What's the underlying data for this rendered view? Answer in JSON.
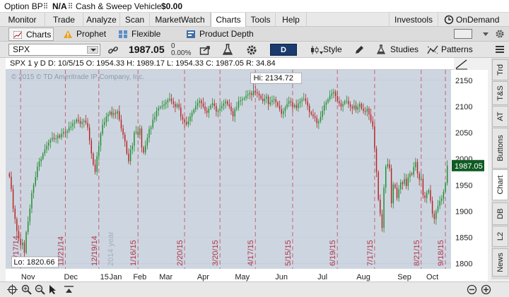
{
  "account": {
    "option_bp_label": "Option BP",
    "option_bp_value": "N/A",
    "cash_label": "Cash & Sweep Vehicle",
    "cash_value": "$0.00"
  },
  "menu": {
    "items": [
      "Monitor",
      "Trade",
      "Analyze",
      "Scan",
      "MarketWatch",
      "Charts",
      "Tools",
      "Help"
    ],
    "active": "Charts",
    "investools": "Investools",
    "ondemand": "OnDemand"
  },
  "subtabs": {
    "items": [
      "Charts",
      "Prophet",
      "Flexible Grid",
      "Product Depth"
    ],
    "active": "Charts"
  },
  "toolbar": {
    "symbol": "SPX",
    "last_price": "1987.05",
    "change": "0",
    "change_pct": "0.00%",
    "aggregation": "D",
    "style_label": "Style",
    "studies_label": "Studies",
    "patterns_label": "Patterns"
  },
  "chart_header": {
    "period": "SPX 1 y D",
    "date": "D: 10/5/15",
    "open": "O: 1954.33",
    "high": "H: 1989.17",
    "low": "L: 1954.33",
    "close": "C: 1987.05",
    "range": "R: 34.84"
  },
  "copyright": "© 2015 © TD Ameritrade IP Company, Inc.",
  "side_tabs": [
    "Trd",
    "T&S",
    "AT",
    "Buttons",
    "Chart",
    "DB",
    "L2",
    "News"
  ],
  "side_tab_active": "Chart",
  "chart_data": {
    "type": "candlestick",
    "symbol": "SPX",
    "ylim": [
      1790,
      2170
    ],
    "y_ticks": [
      1800,
      1850,
      1900,
      1950,
      2000,
      2050,
      2100,
      2150
    ],
    "x_month_labels": [
      "Nov",
      "Dec",
      "15",
      "Jan",
      "Feb",
      "Mar",
      "Apr",
      "May",
      "Jun",
      "Jul",
      "Aug",
      "Sep",
      "Oct"
    ],
    "expiration_markers": [
      "11/21/14",
      "12/19/14",
      "1/16/15",
      "2/20/15",
      "3/20/15",
      "4/17/15",
      "5/15/15",
      "6/19/15",
      "7/17/15",
      "8/21/15",
      "9/18/15"
    ],
    "first_marker_label": "10/17/14",
    "year_watermark": "2014 year",
    "high_label": "Hi: 2134.72",
    "low_label": "Lo: 1820.66",
    "last_label": "1987.05",
    "high": 2134.72,
    "low": 1820.66,
    "last": 1987.05,
    "closes": [
      1966,
      1942,
      1905,
      1885,
      1862,
      1847,
      1835,
      1840,
      1820.66,
      1860,
      1880,
      1905,
      1935,
      1950,
      1965,
      1985,
      1995,
      2000,
      2010,
      2018,
      2025,
      2031,
      2036,
      2040,
      2038,
      2039,
      2045,
      2041,
      2048,
      2051,
      2050,
      2053,
      2060,
      2062,
      2068,
      2070,
      2075,
      2072,
      2067,
      2071,
      2073,
      2069,
      2060,
      2035,
      2010,
      1989,
      1975,
      2005,
      2025,
      2048,
      2065,
      2070,
      2081,
      2085,
      2090,
      2083,
      2088,
      2086,
      2091,
      2075,
      2058,
      2046,
      2033,
      2010,
      1995,
      2018,
      2025,
      2050,
      2052,
      2046,
      2058,
      2022,
      2012,
      2025,
      2040,
      2057,
      2060,
      2075,
      2080,
      2092,
      2097,
      2099,
      2101,
      2104,
      2108,
      2112,
      2115,
      2110,
      2105,
      2099,
      2104,
      2098,
      2080,
      2075,
      2070,
      2066,
      2072,
      2081,
      2088,
      2094,
      2101,
      2107,
      2111,
      2106,
      2100,
      2092,
      2088,
      2096,
      2102,
      2106,
      2101,
      2090,
      2092,
      2096,
      2101,
      2106,
      2110,
      2104,
      2100,
      2091,
      2081,
      2095,
      2098,
      2110,
      2112,
      2114,
      2116,
      2121,
      2123,
      2126,
      2122,
      2130,
      2127,
      2125,
      2121,
      2115,
      2110,
      2115,
      2119,
      2104,
      2108,
      2112,
      2114,
      2108,
      2101,
      2095,
      2086,
      2091,
      2098,
      2105,
      2110,
      2108,
      2099,
      2103,
      2097,
      2106,
      2110,
      2114,
      2115,
      2110,
      2101,
      2089,
      2085,
      2081,
      2078,
      2068,
      2072,
      2080,
      2092,
      2103,
      2108,
      2114,
      2121,
      2125,
      2128,
      2120,
      2110,
      2106,
      2100,
      2105,
      2110,
      2111,
      2104,
      2100,
      2096,
      2102,
      2094,
      2099,
      2105,
      2096,
      2091,
      2090,
      2096,
      2085,
      2072,
      2062,
      2020,
      1975,
      1922,
      1895,
      1868,
      1945,
      1985,
      1990,
      1982,
      1915,
      1951,
      1945,
      1925,
      1942,
      1955,
      1952,
      1962,
      1948,
      1965,
      1972,
      1970,
      1984,
      1994,
      1972,
      1960,
      1962,
      1930,
      1925,
      1935,
      1940,
      1920,
      1895,
      1885,
      1900,
      1910,
      1920,
      1924,
      1937,
      1954,
      1987.05
    ]
  }
}
